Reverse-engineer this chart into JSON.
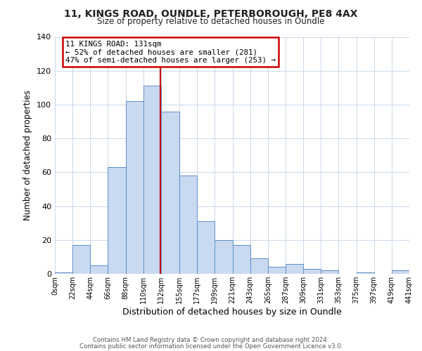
{
  "title1": "11, KINGS ROAD, OUNDLE, PETERBOROUGH, PE8 4AX",
  "title2": "Size of property relative to detached houses in Oundle",
  "xlabel": "Distribution of detached houses by size in Oundle",
  "ylabel": "Number of detached properties",
  "bin_edges": [
    0,
    22,
    44,
    66,
    88,
    110,
    132,
    155,
    177,
    199,
    221,
    243,
    265,
    287,
    309,
    331,
    353,
    375,
    397,
    419,
    441
  ],
  "bin_counts": [
    1,
    17,
    5,
    63,
    102,
    111,
    96,
    58,
    31,
    20,
    17,
    9,
    4,
    6,
    3,
    2,
    0,
    1,
    0,
    2
  ],
  "bar_facecolor": "#c9d9f0",
  "bar_edgecolor": "#5b8fc9",
  "vline_x": 131,
  "vline_color": "#cc0000",
  "annotation_line1": "11 KINGS ROAD: 131sqm",
  "annotation_line2": "← 52% of detached houses are smaller (281)",
  "annotation_line3": "47% of semi-detached houses are larger (253) →",
  "annotation_box_edgecolor": "#cc0000",
  "annotation_box_facecolor": "#ffffff",
  "ylim": [
    0,
    140
  ],
  "yticks": [
    0,
    20,
    40,
    60,
    80,
    100,
    120,
    140
  ],
  "tick_labels": [
    "0sqm",
    "22sqm",
    "44sqm",
    "66sqm",
    "88sqm",
    "110sqm",
    "132sqm",
    "155sqm",
    "177sqm",
    "199sqm",
    "221sqm",
    "243sqm",
    "265sqm",
    "287sqm",
    "309sqm",
    "331sqm",
    "353sqm",
    "375sqm",
    "397sqm",
    "419sqm",
    "441sqm"
  ],
  "footer1": "Contains HM Land Registry data © Crown copyright and database right 2024.",
  "footer2": "Contains public sector information licensed under the Open Government Licence v3.0.",
  "background_color": "#ffffff",
  "grid_color": "#c8d8e8"
}
